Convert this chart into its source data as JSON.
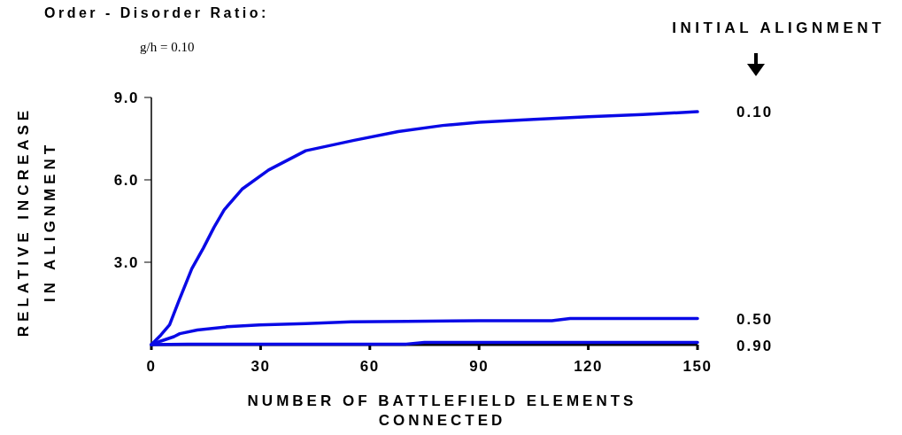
{
  "chart_data": {
    "type": "line",
    "title": "Order - Disorder Ratio:",
    "subtitle": "g/h = 0.10",
    "xlabel": "NUMBER OF BATTLEFIELD ELEMENTS CONNECTED",
    "ylabel": "RELATIVE INCREASE IN ALIGNMENT",
    "legend_title": "INITIAL ALIGNMENT",
    "xlim": [
      0,
      150
    ],
    "ylim": [
      0,
      9
    ],
    "xticks": [
      0,
      30,
      60,
      90,
      120,
      150
    ],
    "yticks": [
      {
        "value": 3,
        "label": "3.0"
      },
      {
        "value": 6,
        "label": "6.0"
      },
      {
        "value": 9,
        "label": "9.0"
      }
    ],
    "grid": false,
    "legend": "right",
    "marker": "none",
    "line_style": "solid",
    "series": [
      {
        "name": "0.10",
        "color": "#0a0ae6",
        "x": [
          0,
          2.6,
          5,
          7.5,
          11.1,
          14.3,
          17.2,
          20,
          24.9,
          32.2,
          42.4,
          55.7,
          67.8,
          80,
          90,
          105,
          120,
          135,
          150
        ],
        "values": [
          0,
          0.35,
          0.72,
          1.58,
          2.76,
          3.52,
          4.27,
          4.91,
          5.66,
          6.36,
          7.06,
          7.44,
          7.76,
          7.98,
          8.1,
          8.2,
          8.3,
          8.38,
          8.48
        ]
      },
      {
        "name": "0.50",
        "color": "#0a0ae6",
        "x": [
          0,
          2.6,
          6.2,
          7.8,
          12.6,
          20.8,
          29.7,
          42.4,
          54.9,
          70,
          90,
          110,
          115,
          150
        ],
        "values": [
          0,
          0.13,
          0.29,
          0.4,
          0.53,
          0.65,
          0.72,
          0.77,
          0.83,
          0.85,
          0.87,
          0.87,
          0.95,
          0.95
        ]
      },
      {
        "name": "0.90",
        "color": "#0a0ae6",
        "x": [
          0,
          10,
          40,
          70,
          75,
          110,
          150
        ],
        "values": [
          0,
          0.02,
          0.02,
          0.02,
          0.08,
          0.08,
          0.08
        ]
      }
    ]
  }
}
